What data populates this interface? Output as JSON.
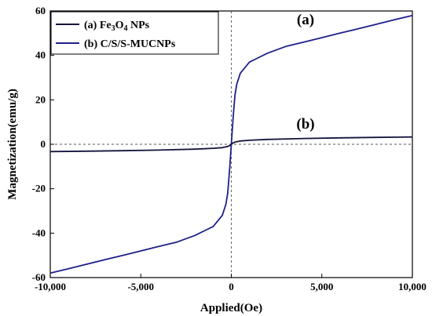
{
  "chart_data": {
    "type": "line",
    "xlabel": "Applied(Oe)",
    "ylabel": "Magnetization(emu/g)",
    "xlim": [
      -10000,
      10000
    ],
    "ylim": [
      -60,
      60
    ],
    "x_ticks": [
      -10000,
      -5000,
      0,
      5000,
      10000
    ],
    "x_tick_labels": [
      "-10,000",
      "-5,000",
      "0",
      "5,000",
      "10,000"
    ],
    "y_ticks": [
      -60,
      -40,
      -20,
      0,
      20,
      40,
      60
    ],
    "y_tick_labels": [
      "-60",
      "-40",
      "-20",
      "0",
      "20",
      "40",
      "60"
    ],
    "grid": false,
    "reference_lines": {
      "x": 0,
      "y": 0,
      "style": "dashed"
    },
    "legend": {
      "position": "top-left",
      "entries": [
        {
          "label_a": "(a)  Fe",
          "sub1": "3",
          "label_b": "O",
          "sub2": "4",
          "label_c": " NPs",
          "color": "#14143c"
        },
        {
          "label": "(b) C/S/S-MUCNPs",
          "color": "#1f1f8c"
        }
      ]
    },
    "annotations": [
      {
        "text": "(a)",
        "x": 4100,
        "y": 54
      },
      {
        "text": "(b)",
        "x": 4100,
        "y": 7
      }
    ],
    "series": [
      {
        "key": "a",
        "color": "#1f1f8c",
        "x": [
          -10000,
          -9000,
          -8000,
          -7000,
          -6000,
          -5000,
          -4000,
          -3000,
          -2000,
          -1500,
          -1000,
          -700,
          -500,
          -300,
          -200,
          -100,
          0,
          100,
          200,
          300,
          500,
          700,
          1000,
          1500,
          2000,
          3000,
          4000,
          5000,
          6000,
          7000,
          8000,
          9000,
          10000
        ],
        "y": [
          -58,
          -56,
          -54,
          -52,
          -50,
          -48,
          -46,
          -44,
          -41,
          -39,
          -37,
          -34,
          -32,
          -27,
          -22,
          -12,
          0,
          12,
          22,
          27,
          32,
          34,
          37,
          39,
          41,
          44,
          46,
          48,
          50,
          52,
          54,
          56,
          58
        ]
      },
      {
        "key": "b",
        "color": "#14143c",
        "x": [
          -10000,
          -8000,
          -6000,
          -4000,
          -2000,
          -1000,
          -500,
          -200,
          -100,
          0,
          100,
          200,
          500,
          1000,
          2000,
          4000,
          6000,
          8000,
          10000
        ],
        "y": [
          -3.3,
          -3.1,
          -2.9,
          -2.6,
          -2.2,
          -1.8,
          -1.5,
          -1.0,
          -0.6,
          0,
          0.6,
          1.0,
          1.5,
          1.8,
          2.2,
          2.6,
          2.9,
          3.1,
          3.3
        ]
      }
    ]
  }
}
